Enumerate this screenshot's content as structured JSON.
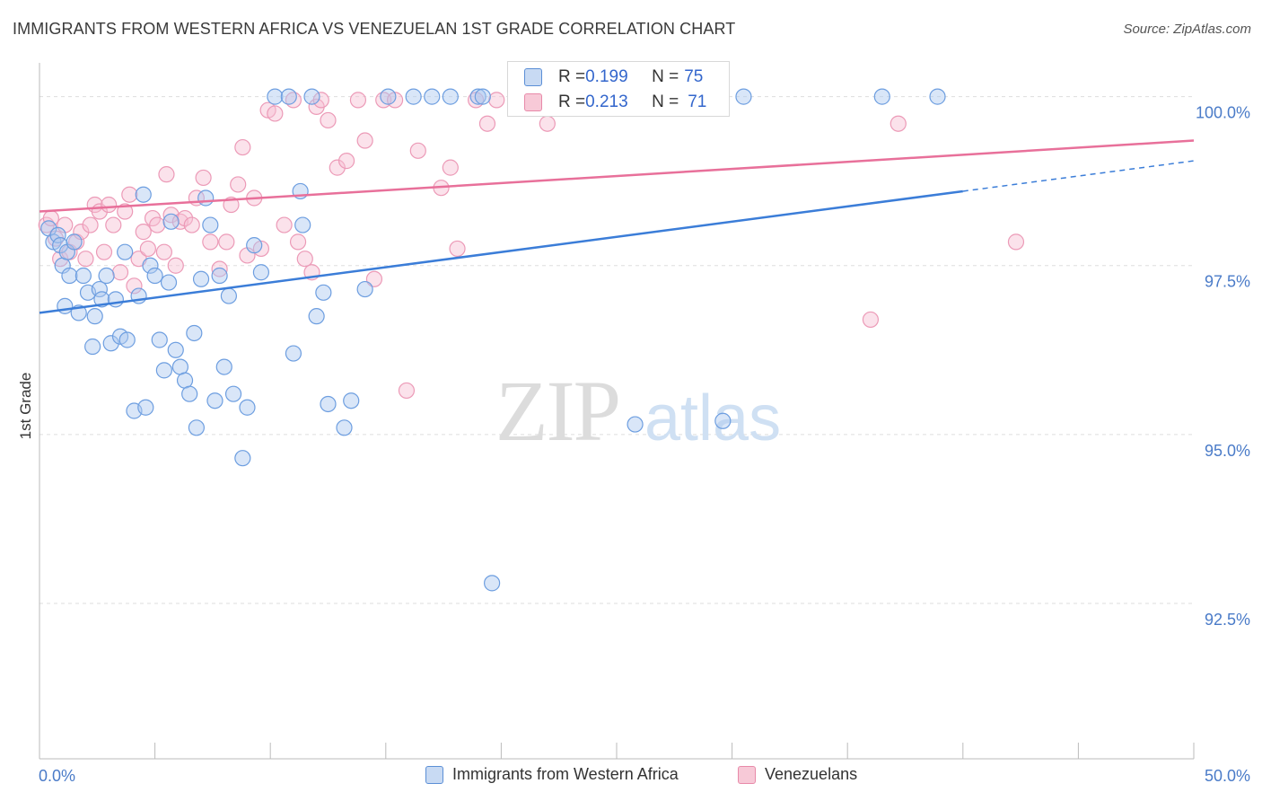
{
  "title": "IMMIGRANTS FROM WESTERN AFRICA VS VENEZUELAN 1ST GRADE CORRELATION CHART",
  "source": "Source: ZipAtlas.com",
  "watermark": {
    "zip": "ZIP",
    "atlas": "atlas"
  },
  "stats": [
    {
      "r_label": "R = ",
      "r_value": "0.199",
      "n_label": "N = ",
      "n_value": "75",
      "color": "#5b8fd6",
      "fill": "#c8daf3"
    },
    {
      "r_label": "R = ",
      "r_value": "0.213",
      "n_label": "N = ",
      "n_value": "71",
      "color": "#e88aa9",
      "fill": "#f7c9d7"
    }
  ],
  "legend": [
    {
      "label": "Immigrants from Western Africa",
      "color": "#5b8fd6",
      "fill": "#c8daf3"
    },
    {
      "label": "Venezuelans",
      "color": "#e88aa9",
      "fill": "#f7c9d7"
    }
  ],
  "chart_data": {
    "type": "scatter",
    "title": "IMMIGRANTS FROM WESTERN AFRICA VS VENEZUELAN 1ST GRADE CORRELATION CHART",
    "ylabel": "1st Grade",
    "xlabel": "",
    "xlim": [
      0,
      50
    ],
    "ylim": [
      90.2,
      100.5
    ],
    "x_tick_labels": [
      "0.0%",
      "50.0%"
    ],
    "y_ticks": [
      92.5,
      95.0,
      97.5,
      100.0
    ],
    "y_tick_labels": [
      "92.5%",
      "95.0%",
      "97.5%",
      "100.0%"
    ],
    "grid": "horizontal dashed",
    "colors": {
      "blue": "#3b7dd8",
      "pink": "#e8709a",
      "tick_label": "#4a7bc8"
    },
    "series": [
      {
        "name": "Immigrants from Western Africa",
        "color": "#5b8fd6",
        "trend": {
          "x1": 0,
          "y1": 96.8,
          "x2": 40,
          "y2": 98.6,
          "x_dash_end": 50,
          "y_dash_end": 99.05
        },
        "points": [
          [
            0.4,
            98.05
          ],
          [
            0.6,
            97.85
          ],
          [
            0.8,
            97.95
          ],
          [
            0.9,
            97.8
          ],
          [
            1.0,
            97.5
          ],
          [
            1.1,
            96.9
          ],
          [
            1.2,
            97.7
          ],
          [
            1.3,
            97.35
          ],
          [
            1.5,
            97.85
          ],
          [
            1.7,
            96.8
          ],
          [
            1.9,
            97.35
          ],
          [
            2.1,
            97.1
          ],
          [
            2.3,
            96.3
          ],
          [
            2.4,
            96.75
          ],
          [
            2.6,
            97.15
          ],
          [
            2.7,
            97.0
          ],
          [
            2.9,
            97.35
          ],
          [
            3.1,
            96.35
          ],
          [
            3.3,
            97.0
          ],
          [
            3.5,
            96.45
          ],
          [
            3.7,
            97.7
          ],
          [
            3.8,
            96.4
          ],
          [
            4.1,
            95.35
          ],
          [
            4.3,
            97.05
          ],
          [
            4.5,
            98.55
          ],
          [
            4.6,
            95.4
          ],
          [
            4.8,
            97.5
          ],
          [
            5.0,
            97.35
          ],
          [
            5.2,
            96.4
          ],
          [
            5.4,
            95.95
          ],
          [
            5.6,
            97.25
          ],
          [
            5.7,
            98.15
          ],
          [
            5.9,
            96.25
          ],
          [
            6.1,
            96.0
          ],
          [
            6.3,
            95.8
          ],
          [
            6.5,
            95.6
          ],
          [
            6.7,
            96.5
          ],
          [
            6.8,
            95.1
          ],
          [
            7.0,
            97.3
          ],
          [
            7.2,
            98.5
          ],
          [
            7.4,
            98.1
          ],
          [
            7.6,
            95.5
          ],
          [
            7.8,
            97.35
          ],
          [
            8.0,
            96.0
          ],
          [
            8.2,
            97.05
          ],
          [
            8.4,
            95.6
          ],
          [
            8.8,
            94.65
          ],
          [
            9.0,
            95.4
          ],
          [
            9.3,
            97.8
          ],
          [
            9.6,
            97.4
          ],
          [
            10.2,
            100.0
          ],
          [
            10.8,
            100.0
          ],
          [
            11.0,
            96.2
          ],
          [
            11.3,
            98.6
          ],
          [
            11.4,
            98.1
          ],
          [
            11.8,
            100.0
          ],
          [
            12.0,
            96.75
          ],
          [
            12.3,
            97.1
          ],
          [
            12.5,
            95.45
          ],
          [
            13.2,
            95.1
          ],
          [
            13.5,
            95.5
          ],
          [
            14.1,
            97.15
          ],
          [
            15.1,
            100.0
          ],
          [
            16.2,
            100.0
          ],
          [
            17.0,
            100.0
          ],
          [
            17.8,
            100.0
          ],
          [
            19.0,
            100.0
          ],
          [
            19.2,
            100.0
          ],
          [
            19.6,
            92.8
          ],
          [
            25.8,
            95.15
          ],
          [
            27.2,
            100.0
          ],
          [
            29.6,
            95.2
          ],
          [
            30.5,
            100.0
          ],
          [
            36.5,
            100.0
          ],
          [
            38.9,
            100.0
          ]
        ]
      },
      {
        "name": "Venezuelans",
        "color": "#e88aa9",
        "trend": {
          "x1": 0,
          "y1": 98.3,
          "x2": 50,
          "y2": 99.35
        },
        "points": [
          [
            0.3,
            98.1
          ],
          [
            0.5,
            98.2
          ],
          [
            0.7,
            97.9
          ],
          [
            0.9,
            97.6
          ],
          [
            1.1,
            98.1
          ],
          [
            1.3,
            97.7
          ],
          [
            1.6,
            97.85
          ],
          [
            1.8,
            98.0
          ],
          [
            2.0,
            97.6
          ],
          [
            2.2,
            98.1
          ],
          [
            2.4,
            98.4
          ],
          [
            2.6,
            98.3
          ],
          [
            2.8,
            97.7
          ],
          [
            3.0,
            98.4
          ],
          [
            3.2,
            98.1
          ],
          [
            3.5,
            97.4
          ],
          [
            3.7,
            98.3
          ],
          [
            3.9,
            98.55
          ],
          [
            4.1,
            97.2
          ],
          [
            4.3,
            97.6
          ],
          [
            4.5,
            98.0
          ],
          [
            4.7,
            97.75
          ],
          [
            4.9,
            98.2
          ],
          [
            5.1,
            98.1
          ],
          [
            5.4,
            97.7
          ],
          [
            5.5,
            98.85
          ],
          [
            5.7,
            98.25
          ],
          [
            5.9,
            97.5
          ],
          [
            6.1,
            98.15
          ],
          [
            6.3,
            98.2
          ],
          [
            6.6,
            98.1
          ],
          [
            6.8,
            98.5
          ],
          [
            7.1,
            98.8
          ],
          [
            7.4,
            97.85
          ],
          [
            7.8,
            97.45
          ],
          [
            8.1,
            97.85
          ],
          [
            8.3,
            98.4
          ],
          [
            8.6,
            98.7
          ],
          [
            8.8,
            99.25
          ],
          [
            9.0,
            97.65
          ],
          [
            9.3,
            98.5
          ],
          [
            9.6,
            97.75
          ],
          [
            9.9,
            99.8
          ],
          [
            10.2,
            99.75
          ],
          [
            10.6,
            98.1
          ],
          [
            11.0,
            99.95
          ],
          [
            11.2,
            97.85
          ],
          [
            11.5,
            97.6
          ],
          [
            11.8,
            97.4
          ],
          [
            12.0,
            99.85
          ],
          [
            12.2,
            99.95
          ],
          [
            12.5,
            99.65
          ],
          [
            12.9,
            98.95
          ],
          [
            13.3,
            99.05
          ],
          [
            13.8,
            99.95
          ],
          [
            14.1,
            99.35
          ],
          [
            14.5,
            97.3
          ],
          [
            14.9,
            99.95
          ],
          [
            15.4,
            99.95
          ],
          [
            15.9,
            95.65
          ],
          [
            16.4,
            99.2
          ],
          [
            17.4,
            98.65
          ],
          [
            17.8,
            98.95
          ],
          [
            18.1,
            97.75
          ],
          [
            18.9,
            99.95
          ],
          [
            19.4,
            99.6
          ],
          [
            19.8,
            99.95
          ],
          [
            22.0,
            99.6
          ],
          [
            36.0,
            96.7
          ],
          [
            37.2,
            99.6
          ],
          [
            42.3,
            97.85
          ]
        ]
      }
    ]
  }
}
